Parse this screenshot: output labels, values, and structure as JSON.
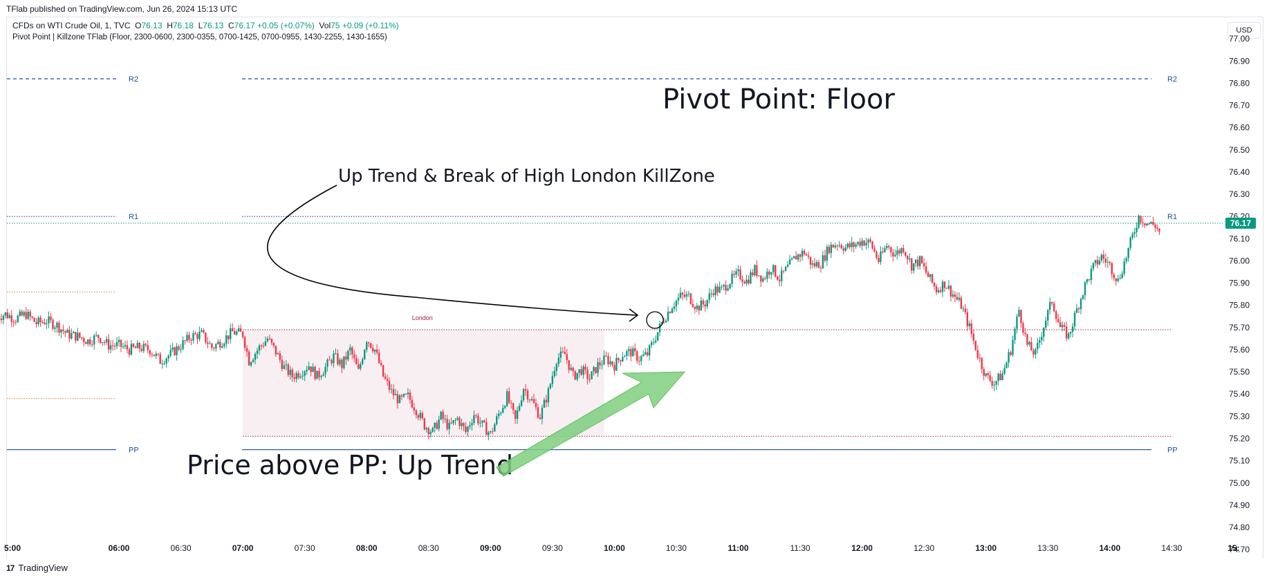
{
  "header": {
    "published": "TFlab published on TradingView.com, Jun 26, 2024 15:13 UTC"
  },
  "legend": {
    "symbol": "CFDs on WTI Crude Oil, 1, TVC",
    "o_label": "O",
    "o_val": "76.13",
    "h_label": "H",
    "h_val": "76.18",
    "l_label": "L",
    "l_val": "76.13",
    "c_label": "C",
    "c_val": "76.17",
    "change": "+0.05 (+0.07%)",
    "vol_label": "Vol",
    "vol_val": "75",
    "vol_change": "+0.09 (+0.11%)",
    "indicator": "Pivot Point | Killzone TFlab (Floor, 2300-0600, 2300-0355, 0700-1425, 0700-0955, 1430-2255, 1430-1655)"
  },
  "currency": "USD",
  "footer": {
    "logo": "17",
    "brand": "TradingView"
  },
  "colors": {
    "up": "#089981",
    "down": "#f23645",
    "pivot": "#1f4e9b",
    "killzone_fill": "#f7eff2",
    "killzone_line": "#9c1f4a",
    "arrow_green": "#7fcf80"
  },
  "chart_data": {
    "type": "candlestick",
    "title": "Pivot Point: Floor",
    "ylim": [
      74.66,
      77.1
    ],
    "y_ticks": [
      "77.00",
      "76.90",
      "76.80",
      "76.70",
      "76.60",
      "76.50",
      "76.40",
      "76.30",
      "76.20",
      "76.10",
      "76.00",
      "75.90",
      "75.80",
      "75.70",
      "75.60",
      "75.50",
      "75.40",
      "75.30",
      "75.20",
      "75.10",
      "75.00",
      "74.90",
      "74.80",
      "74.70"
    ],
    "x_ticks": [
      {
        "label": "5:00",
        "t": 300,
        "bold": true
      },
      {
        "label": "06:00",
        "t": 360,
        "bold": true
      },
      {
        "label": "06:30",
        "t": 390,
        "bold": false
      },
      {
        "label": "07:00",
        "t": 420,
        "bold": true
      },
      {
        "label": "07:30",
        "t": 450,
        "bold": false
      },
      {
        "label": "08:00",
        "t": 480,
        "bold": true
      },
      {
        "label": "08:30",
        "t": 510,
        "bold": false
      },
      {
        "label": "09:00",
        "t": 540,
        "bold": true
      },
      {
        "label": "09:30",
        "t": 570,
        "bold": false
      },
      {
        "label": "10:00",
        "t": 600,
        "bold": true
      },
      {
        "label": "10:30",
        "t": 630,
        "bold": false
      },
      {
        "label": "11:00",
        "t": 660,
        "bold": true
      },
      {
        "label": "11:30",
        "t": 690,
        "bold": false
      },
      {
        "label": "12:00",
        "t": 720,
        "bold": true
      },
      {
        "label": "12:30",
        "t": 750,
        "bold": false
      },
      {
        "label": "13:00",
        "t": 780,
        "bold": true
      },
      {
        "label": "13:30",
        "t": 810,
        "bold": false
      },
      {
        "label": "14:00",
        "t": 840,
        "bold": true
      },
      {
        "label": "14:30",
        "t": 870,
        "bold": false
      },
      {
        "label": "15:",
        "t": 900,
        "bold": true
      }
    ],
    "last_price": "76.17",
    "last_value": 76.17,
    "pivots": [
      {
        "name": "R2",
        "value": 76.82
      },
      {
        "name": "R1",
        "value": 76.2
      },
      {
        "name": "PP",
        "value": 75.15
      }
    ],
    "killzone": {
      "name": "London",
      "t_start": 420,
      "t_end": 595,
      "high": 75.69,
      "low": 75.21
    },
    "prev_zone_levels": [
      75.86,
      75.38
    ],
    "annotations": [
      "Up Trend & Break of High London KillZone",
      "Price above PP: Up Trend"
    ],
    "price_anchors": [
      [
        301,
        75.75
      ],
      [
        305,
        75.76
      ],
      [
        310,
        75.74
      ],
      [
        315,
        75.76
      ],
      [
        320,
        75.72
      ],
      [
        325,
        75.73
      ],
      [
        330,
        75.71
      ],
      [
        335,
        75.67
      ],
      [
        340,
        75.66
      ],
      [
        345,
        75.64
      ],
      [
        350,
        75.66
      ],
      [
        355,
        75.62
      ],
      [
        360,
        75.62
      ],
      [
        365,
        75.6
      ],
      [
        370,
        75.61
      ],
      [
        375,
        75.6
      ],
      [
        380,
        75.55
      ],
      [
        385,
        75.58
      ],
      [
        390,
        75.62
      ],
      [
        395,
        75.66
      ],
      [
        400,
        75.67
      ],
      [
        405,
        75.61
      ],
      [
        410,
        75.64
      ],
      [
        415,
        75.68
      ],
      [
        420,
        75.67
      ],
      [
        423,
        75.55
      ],
      [
        428,
        75.61
      ],
      [
        432,
        75.65
      ],
      [
        436,
        75.59
      ],
      [
        440,
        75.52
      ],
      [
        444,
        75.48
      ],
      [
        448,
        75.5
      ],
      [
        452,
        75.53
      ],
      [
        456,
        75.48
      ],
      [
        460,
        75.52
      ],
      [
        464,
        75.57
      ],
      [
        468,
        75.53
      ],
      [
        472,
        75.6
      ],
      [
        476,
        75.5
      ],
      [
        480,
        75.65
      ],
      [
        484,
        75.6
      ],
      [
        488,
        75.48
      ],
      [
        492,
        75.41
      ],
      [
        496,
        75.37
      ],
      [
        500,
        75.39
      ],
      [
        504,
        75.33
      ],
      [
        508,
        75.26
      ],
      [
        512,
        75.23
      ],
      [
        516,
        75.3
      ],
      [
        520,
        75.25
      ],
      [
        524,
        75.29
      ],
      [
        528,
        75.23
      ],
      [
        532,
        75.31
      ],
      [
        536,
        75.26
      ],
      [
        540,
        75.22
      ],
      [
        544,
        75.31
      ],
      [
        548,
        75.39
      ],
      [
        552,
        75.28
      ],
      [
        556,
        75.43
      ],
      [
        560,
        75.37
      ],
      [
        564,
        75.3
      ],
      [
        568,
        75.41
      ],
      [
        572,
        75.56
      ],
      [
        576,
        75.58
      ],
      [
        580,
        75.48
      ],
      [
        584,
        75.51
      ],
      [
        588,
        75.47
      ],
      [
        592,
        75.53
      ],
      [
        596,
        75.56
      ],
      [
        600,
        75.53
      ],
      [
        604,
        75.58
      ],
      [
        608,
        75.59
      ],
      [
        612,
        75.56
      ],
      [
        616,
        75.58
      ],
      [
        620,
        75.66
      ],
      [
        624,
        75.74
      ],
      [
        628,
        75.8
      ],
      [
        632,
        75.84
      ],
      [
        636,
        75.84
      ],
      [
        640,
        75.79
      ],
      [
        644,
        75.81
      ],
      [
        648,
        75.87
      ],
      [
        652,
        75.87
      ],
      [
        656,
        75.91
      ],
      [
        660,
        75.94
      ],
      [
        664,
        75.91
      ],
      [
        668,
        75.96
      ],
      [
        672,
        75.92
      ],
      [
        676,
        75.97
      ],
      [
        680,
        75.92
      ],
      [
        684,
        75.97
      ],
      [
        688,
        76.02
      ],
      [
        692,
        76.04
      ],
      [
        696,
        75.98
      ],
      [
        700,
        75.99
      ],
      [
        704,
        76.06
      ],
      [
        708,
        76.08
      ],
      [
        712,
        76.06
      ],
      [
        716,
        76.07
      ],
      [
        720,
        76.09
      ],
      [
        724,
        76.08
      ],
      [
        728,
        76.0
      ],
      [
        732,
        76.07
      ],
      [
        736,
        76.03
      ],
      [
        740,
        76.06
      ],
      [
        744,
        75.98
      ],
      [
        748,
        76.0
      ],
      [
        752,
        75.93
      ],
      [
        756,
        75.87
      ],
      [
        760,
        75.9
      ],
      [
        764,
        75.85
      ],
      [
        768,
        75.8
      ],
      [
        772,
        75.7
      ],
      [
        776,
        75.58
      ],
      [
        780,
        75.48
      ],
      [
        784,
        75.45
      ],
      [
        788,
        75.49
      ],
      [
        792,
        75.6
      ],
      [
        796,
        75.78
      ],
      [
        800,
        75.62
      ],
      [
        804,
        75.58
      ],
      [
        808,
        75.71
      ],
      [
        812,
        75.82
      ],
      [
        816,
        75.7
      ],
      [
        820,
        75.66
      ],
      [
        824,
        75.78
      ],
      [
        828,
        75.89
      ],
      [
        832,
        75.97
      ],
      [
        836,
        76.02
      ],
      [
        840,
        75.98
      ],
      [
        844,
        75.91
      ],
      [
        848,
        76.02
      ],
      [
        852,
        76.14
      ],
      [
        854,
        76.2
      ],
      [
        858,
        76.17
      ],
      [
        862,
        76.16
      ],
      [
        864,
        76.13
      ]
    ]
  }
}
